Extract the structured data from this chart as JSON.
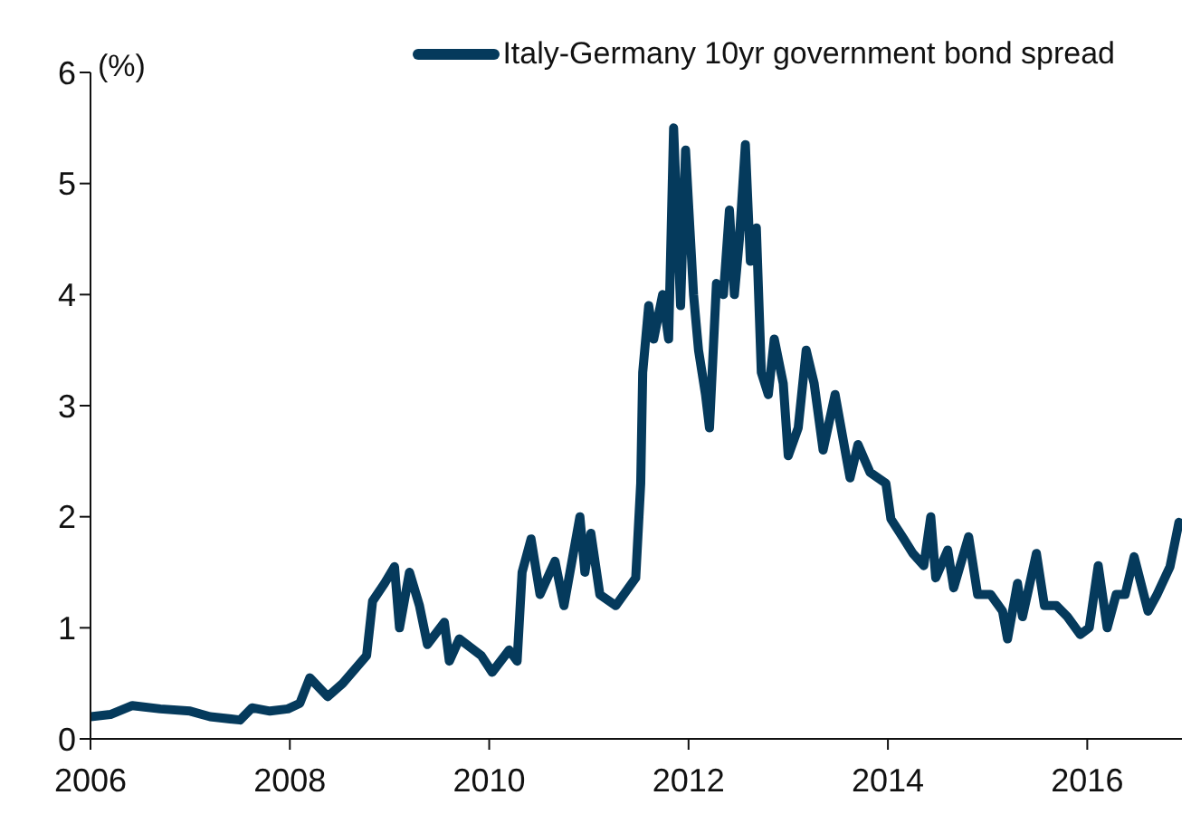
{
  "chart_data": {
    "type": "line",
    "ylabel": "(%)",
    "xlim": [
      2006,
      2016.95
    ],
    "xticks": [
      2006,
      2008,
      2010,
      2012,
      2014,
      2016
    ],
    "ylim": [
      0,
      6
    ],
    "yticks": [
      0,
      1,
      2,
      3,
      4,
      5,
      6
    ],
    "grid": false,
    "legend": "top right",
    "marker": "none",
    "line_style": "solid",
    "x": [
      2006.0,
      2006.2,
      2006.42,
      2006.7,
      2007.0,
      2007.2,
      2007.5,
      2007.62,
      2007.8,
      2007.98,
      2008.1,
      2008.2,
      2008.38,
      2008.53,
      2008.77,
      2008.83,
      2008.95,
      2009.05,
      2009.1,
      2009.2,
      2009.3,
      2009.38,
      2009.55,
      2009.6,
      2009.7,
      2009.92,
      2010.03,
      2010.2,
      2010.28,
      2010.33,
      2010.42,
      2010.51,
      2010.66,
      2010.75,
      2010.91,
      2010.96,
      2011.02,
      2011.11,
      2011.27,
      2011.47,
      2011.52,
      2011.54,
      2011.6,
      2011.65,
      2011.74,
      2011.8,
      2011.85,
      2011.92,
      2011.97,
      2012.05,
      2012.1,
      2012.17,
      2012.21,
      2012.28,
      2012.35,
      2012.41,
      2012.46,
      2012.51,
      2012.57,
      2012.62,
      2012.68,
      2012.73,
      2012.8,
      2012.86,
      2012.95,
      2013.0,
      2013.1,
      2013.18,
      2013.26,
      2013.35,
      2013.47,
      2013.62,
      2013.7,
      2013.82,
      2013.98,
      2014.03,
      2014.16,
      2014.25,
      2014.36,
      2014.43,
      2014.48,
      2014.6,
      2014.66,
      2014.81,
      2014.9,
      2015.03,
      2015.15,
      2015.2,
      2015.3,
      2015.35,
      2015.49,
      2015.57,
      2015.69,
      2015.8,
      2015.93,
      2016.02,
      2016.11,
      2016.2,
      2016.29,
      2016.38,
      2016.47,
      2016.61,
      2016.7,
      2016.83,
      2016.92
    ],
    "series": [
      {
        "name": "Italy-Germany 10yr government bond spread",
        "color": "#053a5c",
        "values": [
          0.2,
          0.22,
          0.3,
          0.27,
          0.25,
          0.2,
          0.17,
          0.28,
          0.25,
          0.27,
          0.32,
          0.55,
          0.38,
          0.5,
          0.75,
          1.24,
          1.4,
          1.55,
          1.0,
          1.5,
          1.2,
          0.85,
          1.05,
          0.7,
          0.9,
          0.75,
          0.6,
          0.8,
          0.7,
          1.5,
          1.8,
          1.3,
          1.6,
          1.2,
          2.0,
          1.5,
          1.85,
          1.3,
          1.2,
          1.45,
          2.3,
          3.3,
          3.9,
          3.6,
          4.0,
          3.6,
          5.5,
          3.9,
          5.3,
          4.0,
          3.5,
          3.1,
          2.8,
          4.1,
          4.0,
          4.76,
          4.0,
          4.5,
          5.35,
          4.3,
          4.6,
          3.3,
          3.1,
          3.6,
          3.2,
          2.55,
          2.8,
          3.5,
          3.2,
          2.6,
          3.1,
          2.35,
          2.65,
          2.4,
          2.3,
          1.98,
          1.8,
          1.67,
          1.56,
          2.0,
          1.45,
          1.7,
          1.36,
          1.82,
          1.3,
          1.3,
          1.15,
          0.9,
          1.4,
          1.1,
          1.67,
          1.2,
          1.2,
          1.1,
          0.94,
          1.0,
          1.56,
          1.0,
          1.3,
          1.3,
          1.64,
          1.15,
          1.3,
          1.55,
          1.95
        ]
      }
    ]
  }
}
